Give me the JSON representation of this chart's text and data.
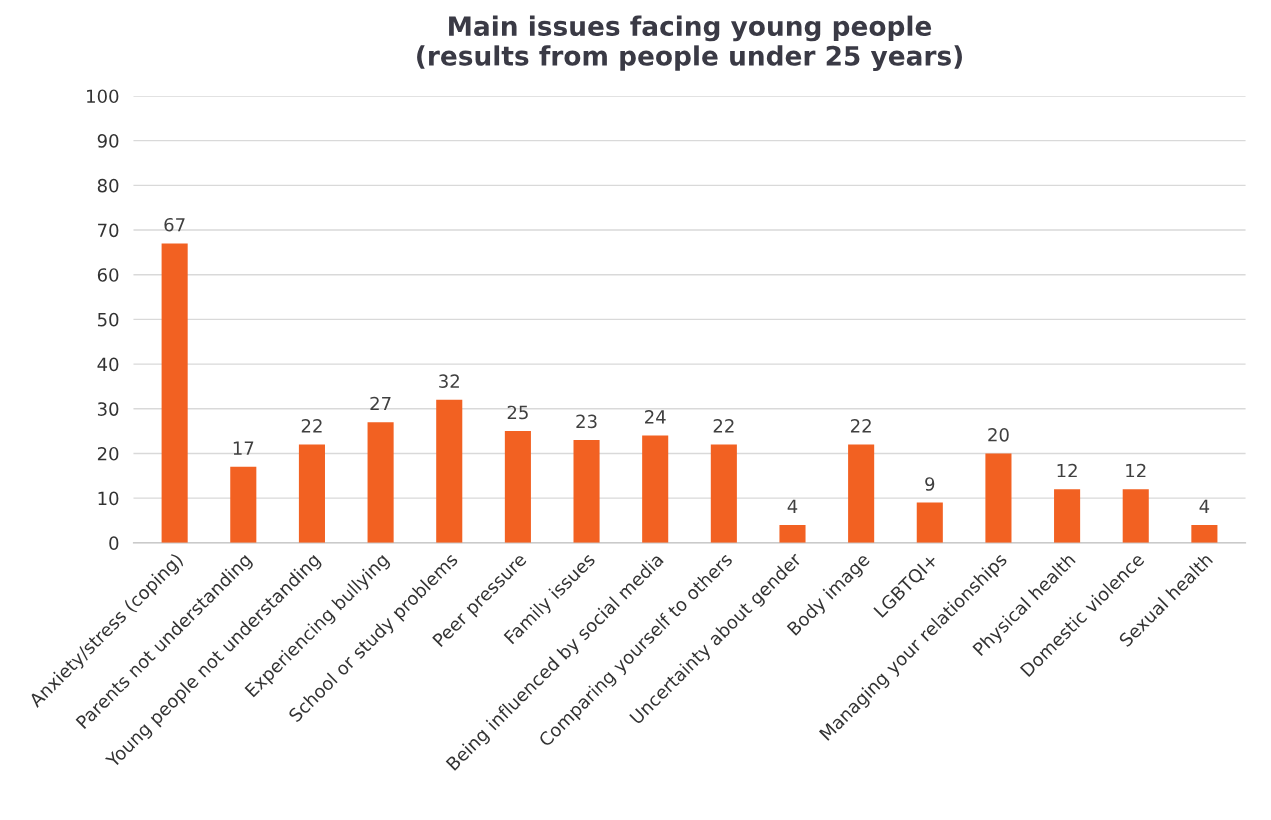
{
  "chart_data": {
    "type": "bar",
    "title": "Main issues facing young people\n(results from people under 25 years)",
    "categories": [
      "Anxiety/stress (coping)",
      "Parents not understanding",
      "Young people not understanding",
      "Experiencing bullying",
      "School or study problems",
      "Peer pressure",
      "Family issues",
      "Being influenced by social media",
      "Comparing yourself to others",
      "Uncertainty about gender",
      "Body image",
      "LGBTQI+",
      "Managing your relationships",
      "Physical health",
      "Domestic violence",
      "Sexual health"
    ],
    "values": [
      67,
      17,
      22,
      27,
      32,
      25,
      23,
      24,
      22,
      4,
      22,
      9,
      20,
      12,
      12,
      4
    ],
    "value_labels": [
      "67",
      "17",
      "22",
      "27",
      "32",
      "25",
      "23",
      "24",
      "22",
      "4",
      "22",
      "9",
      "20",
      "12",
      "12",
      "4"
    ],
    "color": "#f26122",
    "ylim": [
      0,
      100
    ],
    "yticks": [
      0,
      10,
      20,
      30,
      40,
      50,
      60,
      70,
      80,
      90,
      100
    ],
    "grid": "y"
  }
}
